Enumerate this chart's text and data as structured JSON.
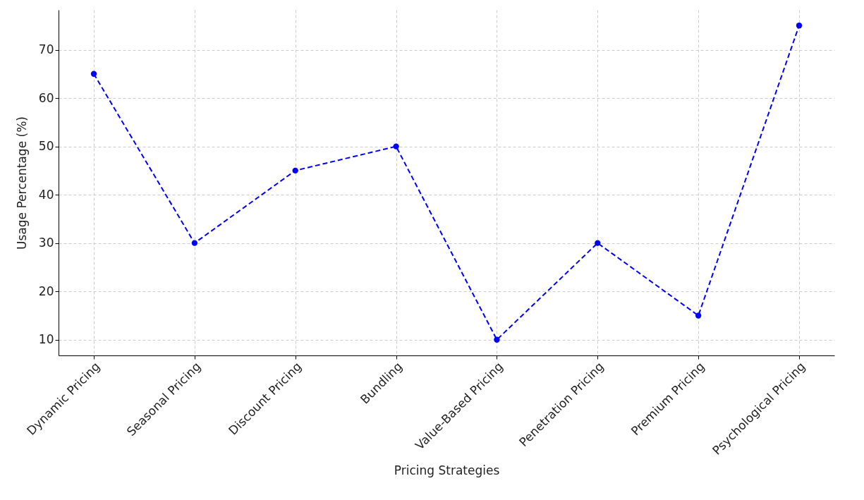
{
  "chart_data": {
    "type": "line",
    "xlabel": "Pricing Strategies",
    "ylabel": "Usage Percentage (%)",
    "categories": [
      "Dynamic Pricing",
      "Seasonal Pricing",
      "Discount Pricing",
      "Bundling",
      "Value-Based Pricing",
      "Penetration Pricing",
      "Premium Pricing",
      "Psychological Pricing"
    ],
    "values": [
      65,
      30,
      45,
      50,
      10,
      30,
      15,
      75
    ],
    "color": "#0000ff",
    "ylim": [
      6.75,
      78.25
    ],
    "yticks": [
      10,
      20,
      30,
      40,
      50,
      60,
      70
    ],
    "grid": true,
    "marker": "circle",
    "line_style": "dashed"
  }
}
